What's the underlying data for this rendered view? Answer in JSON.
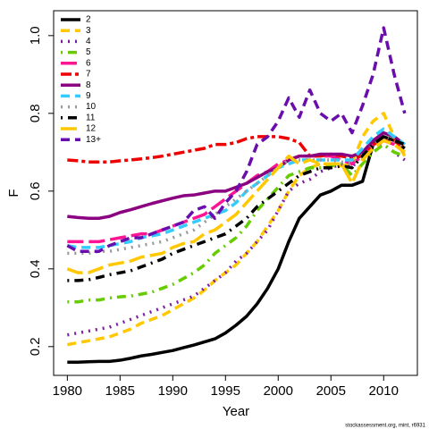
{
  "chart_data": {
    "type": "line",
    "x_label": "Year",
    "y_label": "F",
    "footnote": "stockassessment.org, mint, r6931",
    "x": [
      1980,
      1981,
      1982,
      1983,
      1984,
      1985,
      1986,
      1987,
      1988,
      1989,
      1990,
      1991,
      1992,
      1993,
      1994,
      1995,
      1996,
      1997,
      1998,
      1999,
      2000,
      2001,
      2002,
      2003,
      2004,
      2005,
      2006,
      2007,
      2008,
      2009,
      2010,
      2011,
      2012
    ],
    "xlim": [
      1978.7,
      2013.2
    ],
    "xticks": [
      1980,
      1985,
      1990,
      1995,
      2000,
      2005,
      2010
    ],
    "ylim": [
      0.126,
      1.064
    ],
    "yticks": [
      0.2,
      0.4,
      0.6,
      0.8,
      {
        "value": 1,
        "label": "1.0"
      }
    ],
    "legend": "top-left",
    "series": [
      {
        "name": "2",
        "color": "#000000",
        "dash": "solid",
        "values": [
          0.16,
          0.16,
          0.161,
          0.162,
          0.162,
          0.165,
          0.17,
          0.176,
          0.18,
          0.185,
          0.19,
          0.197,
          0.204,
          0.212,
          0.22,
          0.235,
          0.255,
          0.278,
          0.31,
          0.35,
          0.4,
          0.47,
          0.53,
          0.56,
          0.59,
          0.6,
          0.615,
          0.615,
          0.625,
          0.72,
          0.74,
          0.73,
          0.71
        ]
      },
      {
        "name": "3",
        "color": "#ffc800",
        "dash": "dashed",
        "values": [
          0.205,
          0.21,
          0.215,
          0.22,
          0.225,
          0.235,
          0.245,
          0.26,
          0.27,
          0.28,
          0.295,
          0.31,
          0.325,
          0.345,
          0.37,
          0.39,
          0.41,
          0.44,
          0.47,
          0.51,
          0.55,
          0.6,
          0.64,
          0.66,
          0.67,
          0.665,
          0.665,
          0.67,
          0.74,
          0.78,
          0.8,
          0.74,
          0.69
        ]
      },
      {
        "name": "4",
        "color": "#7b1fa2",
        "dash": "dotted",
        "values": [
          0.23,
          0.235,
          0.24,
          0.245,
          0.25,
          0.26,
          0.27,
          0.28,
          0.29,
          0.3,
          0.31,
          0.32,
          0.33,
          0.35,
          0.37,
          0.39,
          0.42,
          0.44,
          0.47,
          0.5,
          0.55,
          0.6,
          0.62,
          0.63,
          0.65,
          0.66,
          0.67,
          0.66,
          0.7,
          0.72,
          0.72,
          0.7,
          0.68
        ]
      },
      {
        "name": "5",
        "color": "#66cc00",
        "dash": "dotdash",
        "values": [
          0.315,
          0.315,
          0.32,
          0.32,
          0.325,
          0.328,
          0.33,
          0.335,
          0.34,
          0.35,
          0.36,
          0.375,
          0.39,
          0.41,
          0.44,
          0.46,
          0.48,
          0.51,
          0.55,
          0.58,
          0.61,
          0.64,
          0.65,
          0.66,
          0.66,
          0.665,
          0.67,
          0.64,
          0.67,
          0.7,
          0.72,
          0.7,
          0.69
        ]
      },
      {
        "name": "6",
        "color": "#ff1493",
        "dash": "longdash",
        "values": [
          0.47,
          0.47,
          0.47,
          0.47,
          0.475,
          0.48,
          0.485,
          0.49,
          0.49,
          0.5,
          0.51,
          0.52,
          0.53,
          0.54,
          0.56,
          0.58,
          0.6,
          0.62,
          0.64,
          0.65,
          0.67,
          0.68,
          0.69,
          0.69,
          0.69,
          0.69,
          0.68,
          0.67,
          0.69,
          0.72,
          0.73,
          0.72,
          0.7
        ]
      },
      {
        "name": "7",
        "color": "#ee0000",
        "dash": "twodash",
        "values": [
          0.68,
          0.678,
          0.675,
          0.675,
          0.675,
          0.678,
          0.68,
          0.683,
          0.686,
          0.69,
          0.695,
          0.7,
          0.705,
          0.71,
          0.72,
          0.72,
          0.725,
          0.735,
          0.74,
          0.74,
          0.74,
          0.735,
          0.725,
          0.69,
          0.69,
          0.695,
          0.69,
          0.685,
          0.69,
          0.72,
          0.73,
          0.73,
          0.71
        ]
      },
      {
        "name": "8",
        "color": "#8b0080",
        "dash": "solid",
        "values": [
          0.535,
          0.532,
          0.53,
          0.53,
          0.535,
          0.545,
          0.552,
          0.56,
          0.568,
          0.575,
          0.582,
          0.588,
          0.59,
          0.595,
          0.6,
          0.6,
          0.61,
          0.62,
          0.635,
          0.65,
          0.66,
          0.68,
          0.69,
          0.69,
          0.695,
          0.695,
          0.695,
          0.69,
          0.7,
          0.73,
          0.75,
          0.74,
          0.72
        ]
      },
      {
        "name": "9",
        "color": "#33ccff",
        "dash": "dashed",
        "values": [
          0.46,
          0.455,
          0.455,
          0.455,
          0.46,
          0.465,
          0.47,
          0.48,
          0.485,
          0.49,
          0.5,
          0.51,
          0.52,
          0.53,
          0.54,
          0.55,
          0.57,
          0.6,
          0.62,
          0.64,
          0.66,
          0.67,
          0.68,
          0.68,
          0.68,
          0.68,
          0.68,
          0.68,
          0.71,
          0.74,
          0.76,
          0.74,
          0.72
        ]
      },
      {
        "name": "10",
        "color": "#999999",
        "dash": "dotted",
        "values": [
          0.44,
          0.44,
          0.44,
          0.445,
          0.445,
          0.45,
          0.455,
          0.46,
          0.465,
          0.47,
          0.48,
          0.49,
          0.5,
          0.52,
          0.54,
          0.56,
          0.58,
          0.6,
          0.62,
          0.64,
          0.66,
          0.68,
          0.68,
          0.68,
          0.68,
          0.68,
          0.675,
          0.67,
          0.69,
          0.72,
          0.74,
          0.73,
          0.71
        ]
      },
      {
        "name": "11",
        "color": "#000000",
        "dash": "dotdash",
        "values": [
          0.37,
          0.37,
          0.372,
          0.378,
          0.385,
          0.39,
          0.395,
          0.405,
          0.415,
          0.425,
          0.44,
          0.45,
          0.46,
          0.47,
          0.48,
          0.49,
          0.51,
          0.53,
          0.56,
          0.58,
          0.6,
          0.62,
          0.64,
          0.65,
          0.66,
          0.66,
          0.665,
          0.66,
          0.69,
          0.72,
          0.74,
          0.73,
          0.72
        ]
      },
      {
        "name": "12",
        "color": "#ffc800",
        "dash": "longdash",
        "values": [
          0.4,
          0.39,
          0.39,
          0.4,
          0.41,
          0.415,
          0.42,
          0.43,
          0.435,
          0.44,
          0.455,
          0.465,
          0.47,
          0.49,
          0.5,
          0.52,
          0.54,
          0.57,
          0.6,
          0.63,
          0.66,
          0.69,
          0.67,
          0.68,
          0.67,
          0.67,
          0.67,
          0.62,
          0.68,
          0.71,
          0.73,
          0.72,
          0.7
        ]
      },
      {
        "name": "13+",
        "color": "#6a0dad",
        "dash": "dashed",
        "values": [
          0.46,
          0.445,
          0.445,
          0.445,
          0.46,
          0.47,
          0.48,
          0.48,
          0.49,
          0.5,
          0.51,
          0.52,
          0.55,
          0.56,
          0.53,
          0.57,
          0.6,
          0.65,
          0.72,
          0.74,
          0.78,
          0.84,
          0.79,
          0.86,
          0.8,
          0.78,
          0.8,
          0.75,
          0.82,
          0.9,
          1.02,
          0.9,
          0.8
        ]
      }
    ]
  }
}
